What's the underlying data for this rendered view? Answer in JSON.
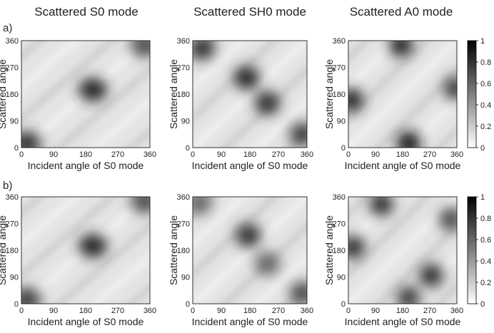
{
  "figure": {
    "column_titles": [
      "Scattered S0 mode",
      "Scattered SH0 mode",
      "Scattered A0 mode"
    ],
    "row_labels": [
      "a)",
      "b)"
    ],
    "xlabel": "Incident angle of S0 mode",
    "ylabel": "Scattered angle",
    "ticks": [
      "0",
      "90",
      "180",
      "270",
      "360"
    ],
    "colorbar_ticks": [
      "1",
      "0.8",
      "0.6",
      "0.4",
      "0.2",
      "0"
    ]
  },
  "chart_data": [
    {
      "type": "heatmap",
      "row": "a)",
      "title": "Scattered S0 mode",
      "xlabel": "Incident angle of S0 mode",
      "ylabel": "Scattered angle",
      "xlim": [
        0,
        360
      ],
      "ylim": [
        0,
        360
      ],
      "clim": [
        0,
        1
      ],
      "colormap": "gray reversed (0 white, 1 black)",
      "peaks": [
        {
          "x": 200,
          "y": 195,
          "value": 0.85
        },
        {
          "x": 15,
          "y": 15,
          "value": 0.8
        },
        {
          "x": 345,
          "y": 345,
          "value": 0.7
        }
      ]
    },
    {
      "type": "heatmap",
      "row": "a)",
      "title": "Scattered SH0 mode",
      "xlabel": "Incident angle of S0 mode",
      "ylabel": "Scattered angle",
      "xlim": [
        0,
        360
      ],
      "ylim": [
        0,
        360
      ],
      "clim": [
        0,
        1
      ],
      "colormap": "gray reversed (0 white, 1 black)",
      "peaks": [
        {
          "x": 170,
          "y": 235,
          "value": 0.85
        },
        {
          "x": 235,
          "y": 150,
          "value": 0.8
        },
        {
          "x": 30,
          "y": 335,
          "value": 0.8
        },
        {
          "x": 345,
          "y": 45,
          "value": 0.75
        }
      ]
    },
    {
      "type": "heatmap",
      "row": "a)",
      "title": "Scattered A0 mode",
      "xlabel": "Incident angle of S0 mode",
      "ylabel": "Scattered angle",
      "xlim": [
        0,
        360
      ],
      "ylim": [
        0,
        360
      ],
      "clim": [
        0,
        1
      ],
      "colormap": "gray reversed (0 white, 1 black)",
      "peaks": [
        {
          "x": 200,
          "y": 15,
          "value": 0.9
        },
        {
          "x": 175,
          "y": 345,
          "value": 0.85
        },
        {
          "x": 10,
          "y": 160,
          "value": 0.85
        },
        {
          "x": 355,
          "y": 200,
          "value": 0.75
        }
      ]
    },
    {
      "type": "heatmap",
      "row": "b)",
      "title": "Scattered S0 mode",
      "xlabel": "Incident angle of S0 mode",
      "ylabel": "Scattered angle",
      "xlim": [
        0,
        360
      ],
      "ylim": [
        0,
        360
      ],
      "clim": [
        0,
        1
      ],
      "colormap": "gray reversed (0 white, 1 black)",
      "peaks": [
        {
          "x": 200,
          "y": 195,
          "value": 0.85
        },
        {
          "x": 15,
          "y": 15,
          "value": 0.75
        },
        {
          "x": 345,
          "y": 345,
          "value": 0.7
        }
      ]
    },
    {
      "type": "heatmap",
      "row": "b)",
      "title": "Scattered SH0 mode",
      "xlabel": "Incident angle of S0 mode",
      "ylabel": "Scattered angle",
      "xlim": [
        0,
        360
      ],
      "ylim": [
        0,
        360
      ],
      "clim": [
        0,
        1
      ],
      "colormap": "gray reversed (0 white, 1 black)",
      "peaks": [
        {
          "x": 175,
          "y": 230,
          "value": 0.8
        },
        {
          "x": 235,
          "y": 135,
          "value": 0.6
        },
        {
          "x": 20,
          "y": 340,
          "value": 0.6
        },
        {
          "x": 345,
          "y": 35,
          "value": 0.7
        }
      ]
    },
    {
      "type": "heatmap",
      "row": "b)",
      "title": "Scattered A0 mode",
      "xlabel": "Incident angle of S0 mode",
      "ylabel": "Scattered angle",
      "xlim": [
        0,
        360
      ],
      "ylim": [
        0,
        360
      ],
      "clim": [
        0,
        1
      ],
      "colormap": "gray reversed (0 white, 1 black)",
      "peaks": [
        {
          "x": 110,
          "y": 335,
          "value": 0.8
        },
        {
          "x": 275,
          "y": 95,
          "value": 0.8
        },
        {
          "x": 15,
          "y": 190,
          "value": 0.8
        },
        {
          "x": 200,
          "y": 20,
          "value": 0.75
        },
        {
          "x": 340,
          "y": 285,
          "value": 0.7
        }
      ]
    }
  ]
}
